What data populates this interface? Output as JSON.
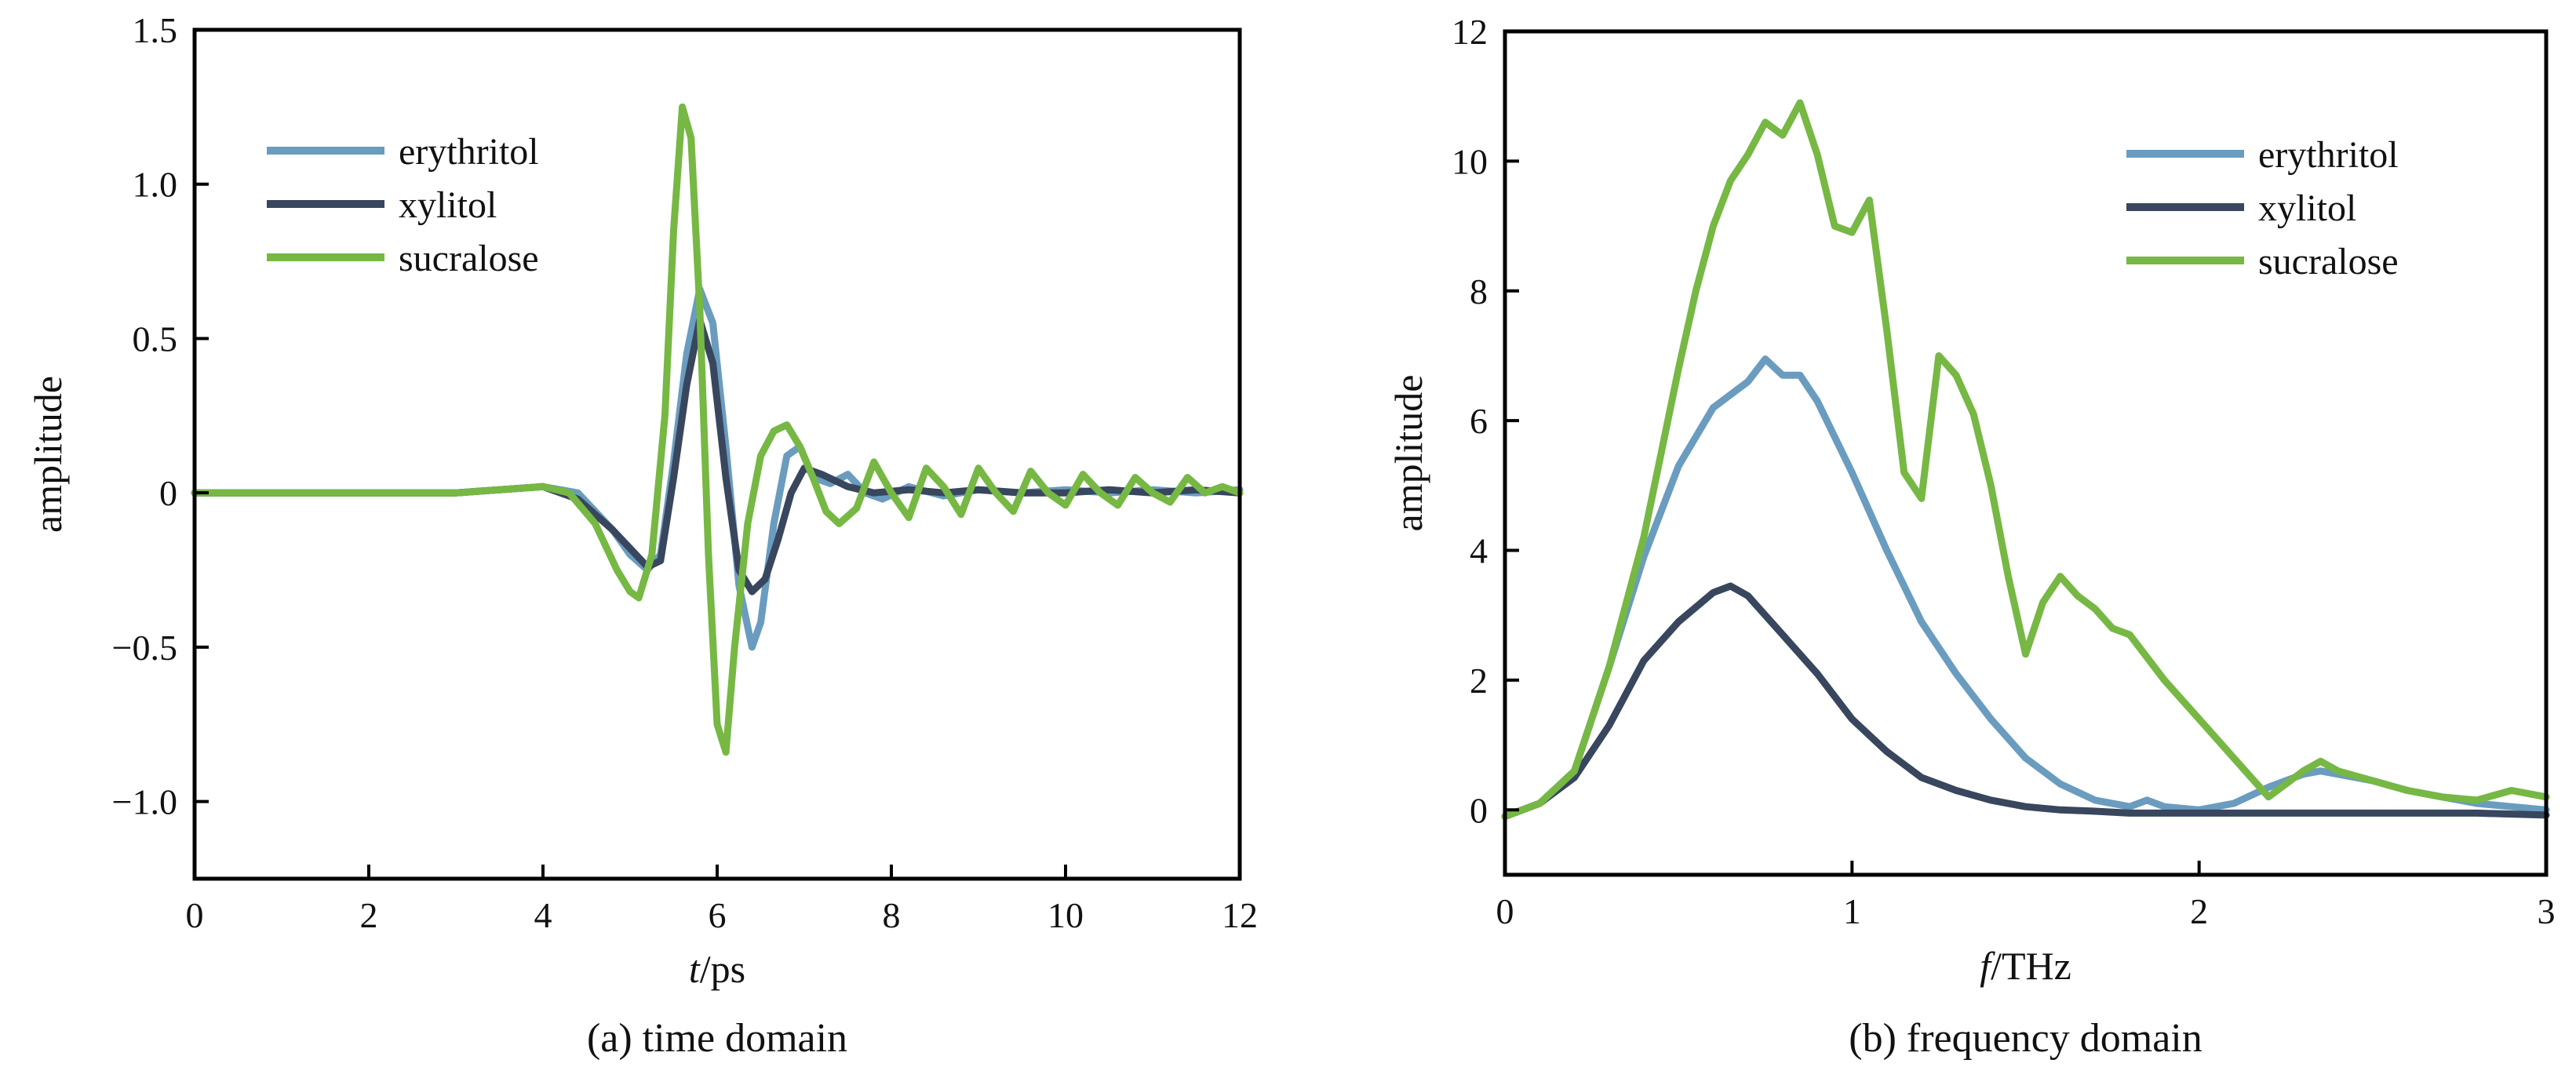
{
  "colors": {
    "erythritol": "#6a9cbf",
    "xylitol": "#38465e",
    "sucralose": "#76b843"
  },
  "chart_data": [
    {
      "type": "line",
      "caption": "(a) time domain",
      "xlabel_italic": "t",
      "xlabel_unit": "/ps",
      "ylabel": "amplitude",
      "xlim": [
        0,
        12
      ],
      "ylim": [
        -1.25,
        1.5
      ],
      "xticks": [
        0,
        2,
        4,
        6,
        8,
        10,
        12
      ],
      "xtick_labels": [
        "0",
        "2",
        "4",
        "6",
        "8",
        "10",
        "12"
      ],
      "yticks": [
        -1.0,
        -0.5,
        0,
        0.5,
        1.0,
        1.5
      ],
      "ytick_labels": [
        "−1.0",
        "−0.5",
        "0",
        "0.5",
        "1.0",
        "1.5"
      ],
      "legend_position": "top-left",
      "series": [
        {
          "name": "erythritol",
          "x": [
            0,
            3.0,
            4.0,
            4.4,
            4.8,
            5.0,
            5.2,
            5.35,
            5.5,
            5.65,
            5.8,
            5.95,
            6.1,
            6.25,
            6.4,
            6.5,
            6.65,
            6.8,
            6.95,
            7.1,
            7.3,
            7.5,
            7.7,
            7.9,
            8.2,
            8.6,
            9.0,
            9.5,
            10.0,
            10.5,
            11.0,
            11.5,
            12.0
          ],
          "y": [
            0,
            0,
            0.02,
            0.0,
            -0.12,
            -0.2,
            -0.25,
            -0.2,
            0.1,
            0.45,
            0.66,
            0.55,
            0.15,
            -0.3,
            -0.5,
            -0.42,
            -0.1,
            0.12,
            0.15,
            0.05,
            0.03,
            0.06,
            0.0,
            -0.02,
            0.02,
            -0.01,
            0.01,
            0.0,
            0.01,
            0.0,
            0.01,
            0.0,
            0.01
          ]
        },
        {
          "name": "xylitol",
          "x": [
            0,
            3.0,
            4.0,
            4.4,
            4.8,
            5.0,
            5.2,
            5.35,
            5.5,
            5.65,
            5.8,
            5.95,
            6.1,
            6.25,
            6.4,
            6.55,
            6.7,
            6.85,
            7.0,
            7.2,
            7.5,
            7.8,
            8.2,
            8.6,
            9.0,
            9.5,
            10.0,
            10.5,
            11.0,
            11.5,
            12.0
          ],
          "y": [
            0,
            0,
            0.02,
            -0.02,
            -0.12,
            -0.18,
            -0.24,
            -0.22,
            0.05,
            0.35,
            0.56,
            0.42,
            0.05,
            -0.25,
            -0.32,
            -0.28,
            -0.15,
            0.0,
            0.08,
            0.06,
            0.02,
            0.0,
            0.01,
            0.0,
            0.01,
            0.0,
            0.0,
            0.01,
            0.0,
            0.01,
            0.0
          ]
        },
        {
          "name": "sucralose",
          "x": [
            0,
            3.0,
            3.5,
            4.0,
            4.3,
            4.6,
            4.85,
            5.0,
            5.1,
            5.25,
            5.4,
            5.5,
            5.6,
            5.7,
            5.8,
            5.9,
            6.0,
            6.1,
            6.2,
            6.35,
            6.5,
            6.65,
            6.8,
            6.95,
            7.1,
            7.25,
            7.4,
            7.6,
            7.8,
            8.0,
            8.2,
            8.4,
            8.6,
            8.8,
            9.0,
            9.2,
            9.4,
            9.6,
            9.8,
            10.0,
            10.2,
            10.4,
            10.6,
            10.8,
            11.0,
            11.2,
            11.4,
            11.6,
            11.8,
            12.0
          ],
          "y": [
            0,
            0,
            0.01,
            0.02,
            0.0,
            -0.1,
            -0.25,
            -0.32,
            -0.34,
            -0.2,
            0.25,
            0.85,
            1.25,
            1.15,
            0.6,
            -0.2,
            -0.75,
            -0.84,
            -0.5,
            -0.1,
            0.12,
            0.2,
            0.22,
            0.15,
            0.05,
            -0.06,
            -0.1,
            -0.05,
            0.1,
            0.0,
            -0.08,
            0.08,
            0.02,
            -0.07,
            0.08,
            0.0,
            -0.06,
            0.07,
            0.0,
            -0.04,
            0.06,
            0.0,
            -0.04,
            0.05,
            0.0,
            -0.03,
            0.05,
            0.0,
            0.02,
            0.0
          ]
        }
      ]
    },
    {
      "type": "line",
      "caption": "(b) frequency domain",
      "xlabel_italic": "f",
      "xlabel_unit": "/THz",
      "ylabel": "amplitude",
      "xlim": [
        0,
        3
      ],
      "ylim": [
        -1,
        12
      ],
      "xticks": [
        0,
        1,
        2,
        3
      ],
      "xtick_labels": [
        "0",
        "1",
        "2",
        "3"
      ],
      "yticks": [
        0,
        2,
        4,
        6,
        8,
        10,
        12
      ],
      "ytick_labels": [
        "0",
        "2",
        "4",
        "6",
        "8",
        "10",
        "12"
      ],
      "legend_position": "top-right",
      "series": [
        {
          "name": "erythritol",
          "x": [
            0,
            0.1,
            0.2,
            0.3,
            0.4,
            0.5,
            0.6,
            0.7,
            0.75,
            0.8,
            0.85,
            0.9,
            1.0,
            1.1,
            1.2,
            1.3,
            1.4,
            1.5,
            1.6,
            1.7,
            1.8,
            1.85,
            1.9,
            2.0,
            2.1,
            2.2,
            2.3,
            2.35,
            2.4,
            2.5,
            2.6,
            2.7,
            2.8,
            2.9,
            3.0
          ],
          "y": [
            -0.1,
            0.1,
            0.6,
            2.2,
            3.9,
            5.3,
            6.2,
            6.6,
            6.95,
            6.7,
            6.7,
            6.3,
            5.2,
            4.0,
            2.9,
            2.1,
            1.4,
            0.8,
            0.4,
            0.15,
            0.05,
            0.15,
            0.05,
            0.0,
            0.1,
            0.35,
            0.55,
            0.6,
            0.55,
            0.45,
            0.3,
            0.2,
            0.1,
            0.05,
            0.0
          ]
        },
        {
          "name": "xylitol",
          "x": [
            0,
            0.1,
            0.2,
            0.3,
            0.4,
            0.5,
            0.6,
            0.65,
            0.7,
            0.8,
            0.9,
            1.0,
            1.1,
            1.2,
            1.3,
            1.4,
            1.5,
            1.6,
            1.7,
            1.8,
            1.9,
            2.0,
            2.2,
            2.4,
            2.6,
            2.8,
            3.0
          ],
          "y": [
            -0.1,
            0.1,
            0.5,
            1.3,
            2.3,
            2.9,
            3.35,
            3.45,
            3.3,
            2.7,
            2.1,
            1.4,
            0.9,
            0.5,
            0.3,
            0.15,
            0.05,
            0.0,
            -0.02,
            -0.05,
            -0.05,
            -0.05,
            -0.05,
            -0.05,
            -0.05,
            -0.05,
            -0.08
          ]
        },
        {
          "name": "sucralose",
          "x": [
            0,
            0.1,
            0.2,
            0.3,
            0.4,
            0.45,
            0.5,
            0.55,
            0.6,
            0.65,
            0.7,
            0.75,
            0.8,
            0.85,
            0.9,
            0.95,
            1.0,
            1.05,
            1.1,
            1.15,
            1.2,
            1.25,
            1.3,
            1.35,
            1.4,
            1.45,
            1.5,
            1.55,
            1.6,
            1.65,
            1.7,
            1.75,
            1.8,
            1.9,
            2.0,
            2.1,
            2.2,
            2.3,
            2.35,
            2.4,
            2.5,
            2.6,
            2.7,
            2.8,
            2.9,
            3.0
          ],
          "y": [
            -0.1,
            0.1,
            0.6,
            2.2,
            4.2,
            5.5,
            6.8,
            8.0,
            9.0,
            9.7,
            10.1,
            10.6,
            10.4,
            10.9,
            10.1,
            9.0,
            8.9,
            9.4,
            7.4,
            5.2,
            4.8,
            7.0,
            6.7,
            6.1,
            5.0,
            3.6,
            2.4,
            3.2,
            3.6,
            3.3,
            3.1,
            2.8,
            2.7,
            2.0,
            1.4,
            0.8,
            0.2,
            0.6,
            0.75,
            0.6,
            0.45,
            0.3,
            0.2,
            0.15,
            0.3,
            0.2
          ]
        }
      ]
    }
  ]
}
